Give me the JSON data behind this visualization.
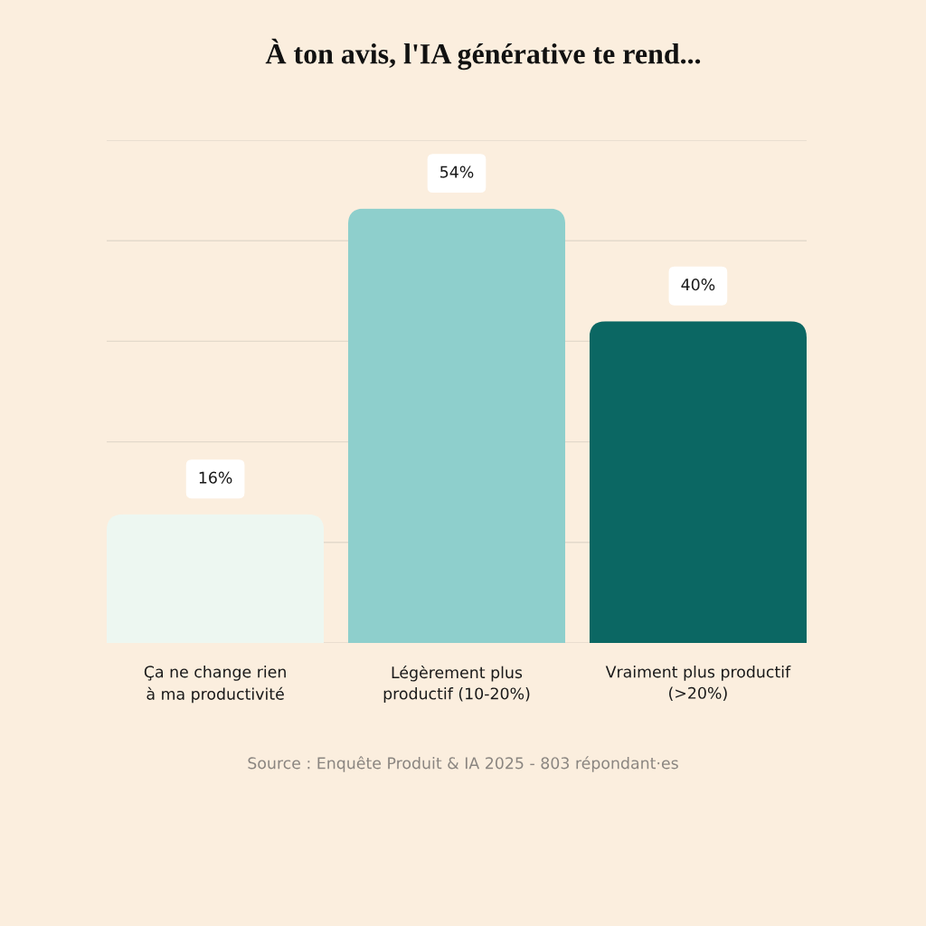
{
  "chart_data": {
    "type": "bar",
    "title": "À ton avis, l'IA générative te rend...",
    "categories": [
      "Ça ne change rien\nà ma productivité",
      "Légèrement plus\nproductif (10-20%)",
      "Vraiment plus productif\n(>20%)"
    ],
    "values": [
      16,
      54,
      40
    ],
    "colors": [
      "#edf7f1",
      "#8ecfcc",
      "#0b6763"
    ],
    "value_labels": [
      "16%",
      "54%",
      "40%"
    ],
    "ylim": [
      0,
      62.5
    ],
    "yticks": [
      {
        "value": 0,
        "label": null
      },
      {
        "value": 12.5,
        "label": null
      },
      {
        "value": 25,
        "label": null
      },
      {
        "value": 37.5,
        "label": null
      },
      {
        "value": 50,
        "label": null
      },
      {
        "value": 62.5,
        "label": null
      }
    ],
    "tick_labels": "x",
    "grid": "y",
    "legend": false,
    "annotations": [
      "Source : Enquête Produit & IA 2025 - 803 répondant·es"
    ]
  }
}
